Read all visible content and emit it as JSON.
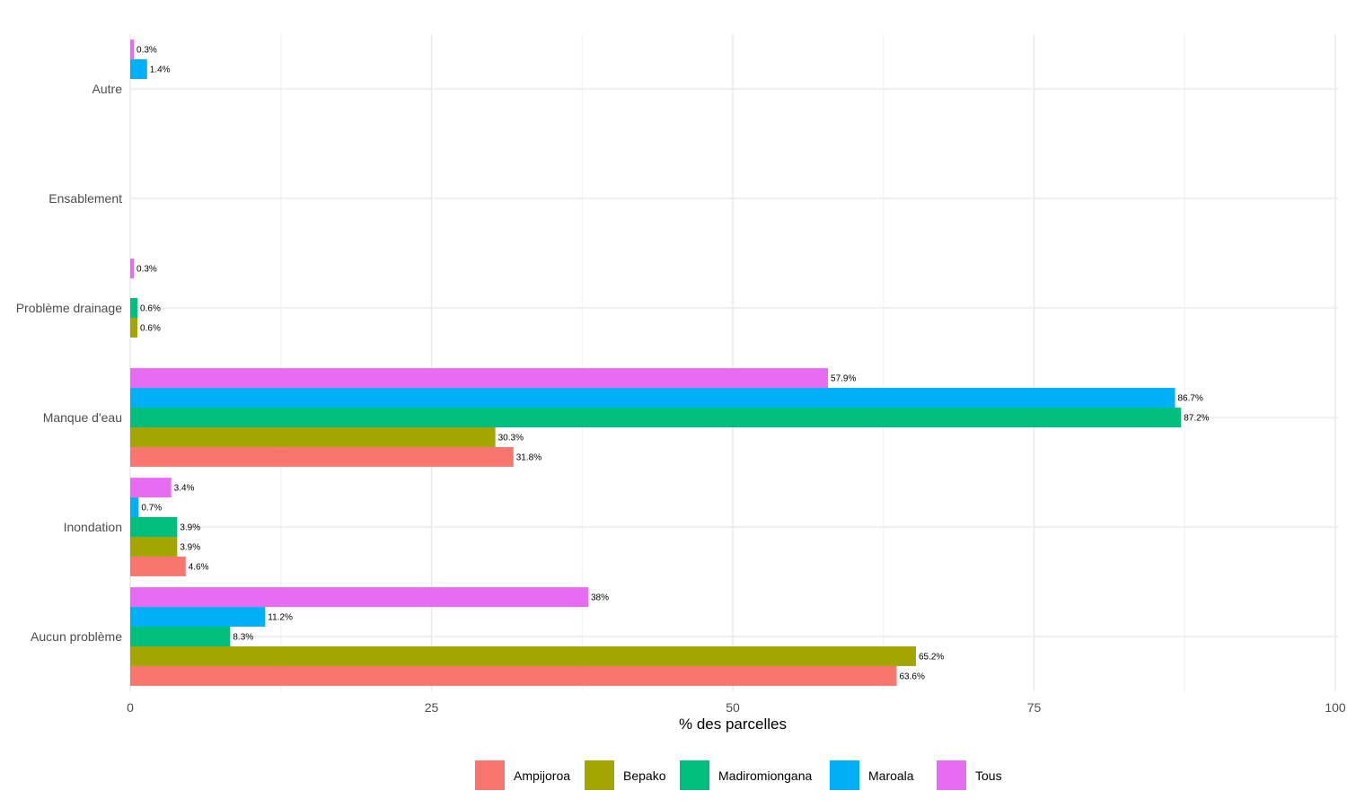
{
  "chart_data": {
    "type": "bar",
    "orientation": "horizontal",
    "title": "",
    "xlabel": "% des parcelles",
    "ylabel": "",
    "xlim": [
      0,
      100
    ],
    "xticks": [
      0,
      25,
      50,
      75,
      100
    ],
    "grid": true,
    "legend_position": "bottom",
    "categories": [
      "Aucun problème",
      "Inondation",
      "Manque d'eau",
      "Problème drainage",
      "Ensablement",
      "Autre"
    ],
    "series": [
      {
        "name": "Ampijoroa",
        "color": "#F8766D",
        "values": [
          63.6,
          4.6,
          31.8,
          null,
          null,
          null
        ],
        "labels": [
          "63.6%",
          "4.6%",
          "31.8%",
          null,
          null,
          null
        ]
      },
      {
        "name": "Bepako",
        "color": "#A3A500",
        "values": [
          65.2,
          3.9,
          30.3,
          0.6,
          null,
          null
        ],
        "labels": [
          "65.2%",
          "3.9%",
          "30.3%",
          "0.6%",
          null,
          null
        ]
      },
      {
        "name": "Madiromiongana",
        "color": "#00BF7D",
        "values": [
          8.3,
          3.9,
          87.2,
          0.6,
          null,
          null
        ],
        "labels": [
          "8.3%",
          "3.9%",
          "87.2%",
          "0.6%",
          null,
          null
        ]
      },
      {
        "name": "Maroala",
        "color": "#00B0F6",
        "values": [
          11.2,
          0.7,
          86.7,
          null,
          null,
          1.4
        ],
        "labels": [
          "11.2%",
          "0.7%",
          "86.7%",
          null,
          null,
          "1.4%"
        ]
      },
      {
        "name": "Tous",
        "color": "#E76BF3",
        "values": [
          38,
          3.4,
          57.9,
          0.3,
          null,
          0.3
        ],
        "labels": [
          "38%",
          "3.4%",
          "57.9%",
          "0.3%",
          null,
          "0.3%"
        ]
      }
    ]
  }
}
